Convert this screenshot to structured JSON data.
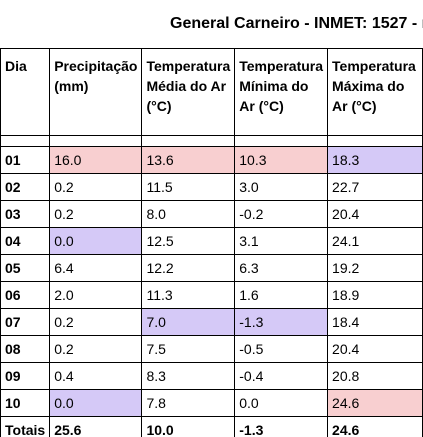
{
  "title": "General Carneiro - INMET: 1527 - m",
  "headers": [
    "Dia",
    "Precipitação (mm)",
    "Temperatura Média do Ar (°C)",
    "Temperatura Mínima do Ar (°C)",
    "Temperatura Máxima do Ar (°C)"
  ],
  "rows": [
    {
      "day": "01",
      "precip": "16.0",
      "tmed": "13.6",
      "tmin": "10.3",
      "tmax": "18.3"
    },
    {
      "day": "02",
      "precip": "0.2",
      "tmed": "11.5",
      "tmin": "3.0",
      "tmax": "22.7"
    },
    {
      "day": "03",
      "precip": "0.2",
      "tmed": "8.0",
      "tmin": "-0.2",
      "tmax": "20.4"
    },
    {
      "day": "04",
      "precip": "0.0",
      "tmed": "12.5",
      "tmin": "3.1",
      "tmax": "24.1"
    },
    {
      "day": "05",
      "precip": "6.4",
      "tmed": "12.2",
      "tmin": "6.3",
      "tmax": "19.2"
    },
    {
      "day": "06",
      "precip": "2.0",
      "tmed": "11.3",
      "tmin": "1.6",
      "tmax": "18.9"
    },
    {
      "day": "07",
      "precip": "0.2",
      "tmed": "7.0",
      "tmin": "-1.3",
      "tmax": "18.4"
    },
    {
      "day": "08",
      "precip": "0.2",
      "tmed": "7.5",
      "tmin": "-0.5",
      "tmax": "20.4"
    },
    {
      "day": "09",
      "precip": "0.4",
      "tmed": "8.3",
      "tmin": "-0.4",
      "tmax": "20.8"
    },
    {
      "day": "10",
      "precip": "0.0",
      "tmed": "7.8",
      "tmin": "0.0",
      "tmax": "24.6"
    }
  ],
  "totals": {
    "label": "Totais",
    "precip": "25.6",
    "tmed": "10.0",
    "tmin": "-1.3",
    "tmax": "24.6"
  },
  "highlight_colors": {
    "max": "#f8cfd0",
    "min": "#d5c9f7"
  }
}
